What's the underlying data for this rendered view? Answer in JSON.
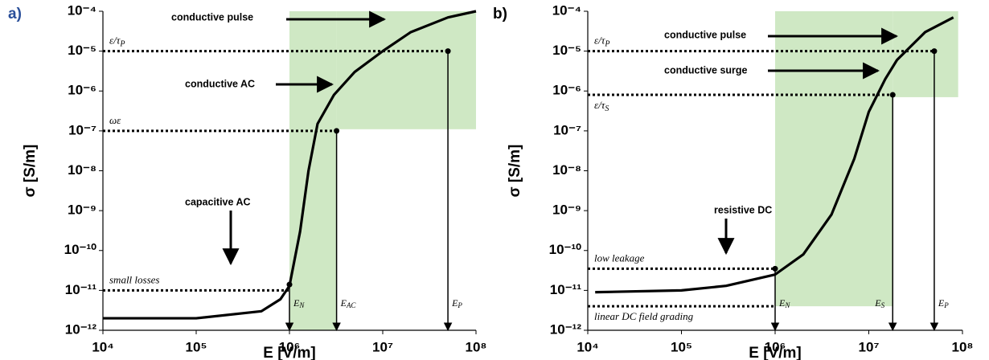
{
  "chart_data": [
    {
      "type": "line",
      "panel": "a)",
      "panel_color": "#2a4f9a",
      "xlabel": "E  [V/m]",
      "ylabel": "σ [S/m]",
      "xscale": "log",
      "yscale": "log",
      "xlim": [
        10000,
        100000000
      ],
      "ylim": [
        1e-12,
        0.0001
      ],
      "xticks": [
        {
          "value": 10000,
          "label": "10⁴"
        },
        {
          "value": 100000,
          "label": "10⁵"
        },
        {
          "value": 1000000,
          "label": "10⁶"
        },
        {
          "value": 10000000,
          "label": "10⁷"
        },
        {
          "value": 100000000,
          "label": "10⁸"
        }
      ],
      "yticks": [
        {
          "value": 1e-12,
          "label": "10⁻¹²"
        },
        {
          "value": 1e-11,
          "label": "10⁻¹¹"
        },
        {
          "value": 1e-10,
          "label": "10⁻¹⁰"
        },
        {
          "value": 1e-09,
          "label": "10⁻⁹"
        },
        {
          "value": 1e-08,
          "label": "10⁻⁸"
        },
        {
          "value": 1e-07,
          "label": "10⁻⁷"
        },
        {
          "value": 1e-06,
          "label": "10⁻⁶"
        },
        {
          "value": 1e-05,
          "label": "10⁻⁵"
        },
        {
          "value": 0.0001,
          "label": "10⁻⁴"
        }
      ],
      "shade_color": "#cfe8c4",
      "shade": [
        {
          "x0": 1000000,
          "x1": 3200000,
          "y0": 1e-12,
          "y1": 0.0001
        },
        {
          "x0": 3200000,
          "x1": 100000000,
          "y0": 1.1e-07,
          "y1": 0.0001
        }
      ],
      "series": [
        {
          "color": "#000000",
          "x": [
            10000,
            100000,
            500000,
            800000,
            1000000,
            1300000,
            1600000,
            2000000,
            3000000,
            5000000,
            10000000,
            20000000,
            50000000,
            100000000
          ],
          "values": [
            2e-12,
            2e-12,
            3e-12,
            6e-12,
            1.3e-11,
            3e-10,
            1e-08,
            1.5e-07,
            8e-07,
            3e-06,
            1e-05,
            3e-05,
            7e-05,
            0.0001
          ]
        }
      ],
      "levels": [
        {
          "label": "ε/τ",
          "sub": "P",
          "y": 1e-05,
          "x_end": 50000000
        },
        {
          "label": "ωε",
          "y": 1e-07,
          "x_end": 3200000
        },
        {
          "label": "small losses",
          "y": 1e-11,
          "x_end": 1000000
        }
      ],
      "markers": [
        {
          "label": "E",
          "sub": "N",
          "x": 1000000,
          "y": 1.4e-11
        },
        {
          "label": "E",
          "sub": "AC",
          "x": 3200000,
          "y": 1e-07
        },
        {
          "label": "E",
          "sub": "P",
          "x": 50000000,
          "y": 1e-05
        }
      ],
      "annotations": [
        {
          "text": "conductive pulse"
        },
        {
          "text": "conductive AC"
        },
        {
          "text": "capacitive AC"
        }
      ]
    },
    {
      "type": "line",
      "panel": "b)",
      "panel_color": "#000000",
      "xlabel": "E  [V/m]",
      "ylabel": "σ [S/m]",
      "xscale": "log",
      "yscale": "log",
      "xlim": [
        10000,
        100000000
      ],
      "ylim": [
        1e-12,
        0.0001
      ],
      "xticks": [
        {
          "value": 10000,
          "label": "10⁴"
        },
        {
          "value": 100000,
          "label": "10⁵"
        },
        {
          "value": 1000000,
          "label": "10⁶"
        },
        {
          "value": 10000000,
          "label": "10⁷"
        },
        {
          "value": 100000000,
          "label": "10⁸"
        }
      ],
      "yticks": [
        {
          "value": 1e-12,
          "label": "10⁻¹²"
        },
        {
          "value": 1e-11,
          "label": "10⁻¹¹"
        },
        {
          "value": 1e-10,
          "label": "10⁻¹⁰"
        },
        {
          "value": 1e-09,
          "label": "10⁻⁹"
        },
        {
          "value": 1e-08,
          "label": "10⁻⁸"
        },
        {
          "value": 1e-07,
          "label": "10⁻⁷"
        },
        {
          "value": 1e-06,
          "label": "10⁻⁶"
        },
        {
          "value": 1e-05,
          "label": "10⁻⁵"
        },
        {
          "value": 0.0001,
          "label": "10⁻⁴"
        }
      ],
      "shade_color": "#cfe8c4",
      "shade": [
        {
          "x0": 1000000,
          "x1": 18000000,
          "y0": 4e-12,
          "y1": 0.0001
        },
        {
          "x0": 18000000,
          "x1": 90000000,
          "y0": 7e-07,
          "y1": 0.0001
        }
      ],
      "series": [
        {
          "color": "#000000",
          "x": [
            12000,
            100000,
            300000,
            1000000,
            2000000,
            4000000,
            7000000,
            10000000,
            15000000,
            20000000,
            40000000,
            80000000
          ],
          "values": [
            9e-12,
            1e-11,
            1.3e-11,
            2.5e-11,
            8e-11,
            8e-10,
            2e-08,
            3e-07,
            2e-06,
            6e-06,
            3e-05,
            7e-05
          ]
        }
      ],
      "levels": [
        {
          "label": "ε/τ",
          "sub": "P",
          "y": 1e-05,
          "x_end": 50000000
        },
        {
          "label": "ε/τ",
          "sub": "S",
          "y": 8e-07,
          "x_end": 18000000
        },
        {
          "label": "low leakage",
          "y": 3.5e-11,
          "x_end": 1000000
        },
        {
          "label": "linear DC field grading",
          "y": 4e-12,
          "x_end": 1000000
        }
      ],
      "markers": [
        {
          "label": "E",
          "sub": "N",
          "x": 1000000,
          "y": 3.5e-11
        },
        {
          "label": "E",
          "sub": "S",
          "x": 18000000,
          "y": 8e-07
        },
        {
          "label": "E",
          "sub": "P",
          "x": 50000000,
          "y": 1e-05
        }
      ],
      "annotations": [
        {
          "text": "conductive pulse"
        },
        {
          "text": "conductive surge"
        },
        {
          "text": "resistive DC"
        }
      ]
    }
  ]
}
